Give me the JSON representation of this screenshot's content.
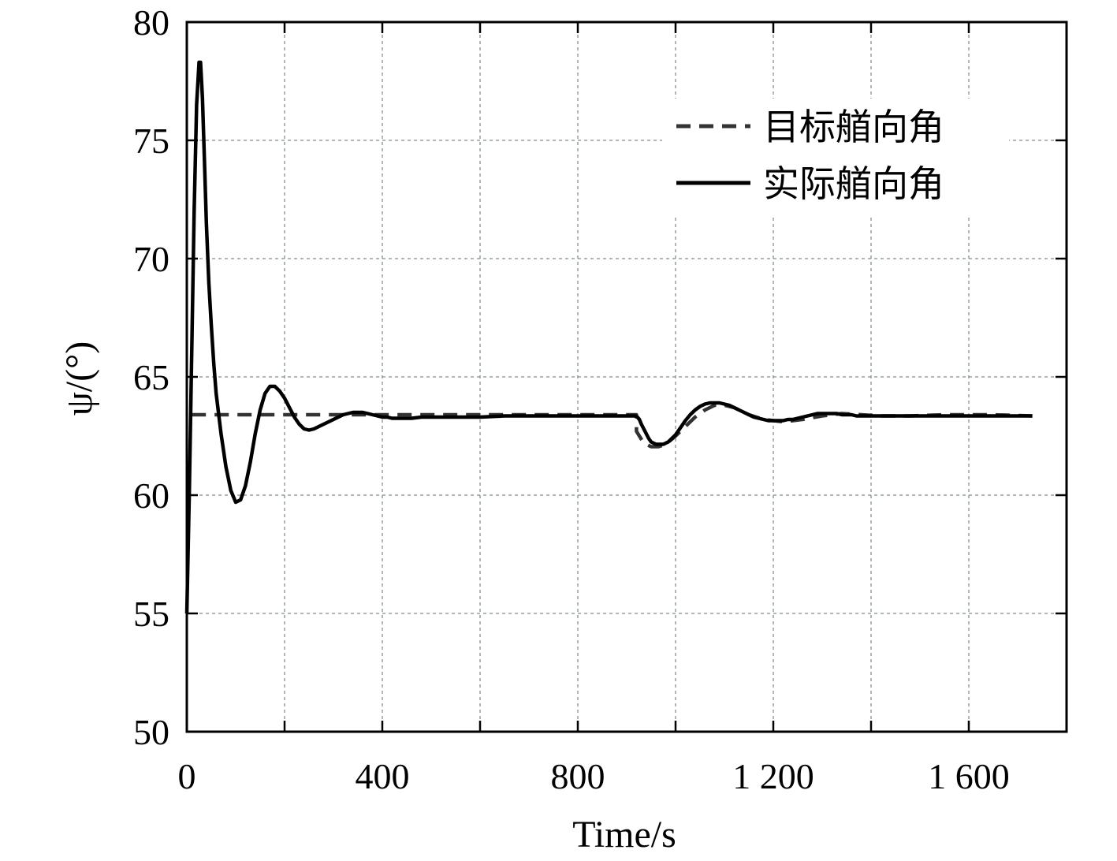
{
  "chart_data": {
    "type": "line",
    "xlabel": "Time/s",
    "ylabel": "ψ/(°)",
    "xlim": [
      0,
      1800
    ],
    "ylim": [
      50,
      80
    ],
    "xticks": [
      0,
      400,
      800,
      1200,
      1600
    ],
    "xtick_labels": [
      "0",
      "400",
      "800",
      "1 200",
      "1 600"
    ],
    "yticks": [
      50,
      55,
      60,
      65,
      70,
      75,
      80
    ],
    "ytick_labels": [
      "50",
      "55",
      "60",
      "65",
      "70",
      "75",
      "80"
    ],
    "grid": true,
    "legend_position": "top-right",
    "series": [
      {
        "name": "目标艏向角",
        "style": "dashed",
        "color": "#333333",
        "x": [
          10,
          920,
          920,
          935,
          950,
          965,
          980,
          1000,
          1020,
          1040,
          1060,
          1080,
          1100,
          1120,
          1150,
          1180,
          1220,
          1260,
          1300,
          1340,
          1380,
          1420,
          1480,
          1550,
          1650,
          1730
        ],
        "y": [
          63.4,
          63.4,
          62.7,
          62.2,
          62.05,
          62.05,
          62.15,
          62.5,
          62.9,
          63.3,
          63.6,
          63.8,
          63.8,
          63.7,
          63.4,
          63.2,
          63.1,
          63.2,
          63.35,
          63.45,
          63.4,
          63.35,
          63.35,
          63.4,
          63.4,
          63.35
        ]
      },
      {
        "name": "实际艏向角",
        "style": "solid",
        "color": "#000000",
        "x": [
          0,
          5,
          10,
          15,
          20,
          25,
          28,
          32,
          36,
          40,
          45,
          50,
          55,
          60,
          70,
          80,
          90,
          100,
          110,
          120,
          130,
          140,
          150,
          160,
          170,
          180,
          190,
          200,
          210,
          220,
          230,
          240,
          250,
          260,
          270,
          280,
          290,
          300,
          310,
          320,
          330,
          340,
          350,
          360,
          370,
          380,
          390,
          400,
          410,
          420,
          440,
          460,
          480,
          500,
          520,
          540,
          560,
          600,
          650,
          700,
          750,
          800,
          850,
          900,
          918,
          922,
          926,
          930,
          935,
          940,
          945,
          950,
          955,
          960,
          965,
          970,
          975,
          980,
          985,
          990,
          995,
          1000,
          1005,
          1010,
          1020,
          1030,
          1040,
          1050,
          1060,
          1070,
          1080,
          1090,
          1100,
          1110,
          1120,
          1130,
          1140,
          1150,
          1160,
          1170,
          1180,
          1190,
          1200,
          1210,
          1220,
          1230,
          1240,
          1250,
          1260,
          1270,
          1280,
          1290,
          1300,
          1310,
          1320,
          1330,
          1340,
          1350,
          1360,
          1370,
          1380,
          1390,
          1400,
          1420,
          1440,
          1460,
          1480,
          1500,
          1550,
          1600,
          1650,
          1700,
          1730
        ],
        "y": [
          55.0,
          60.0,
          66.0,
          72.0,
          76.5,
          78.3,
          78.3,
          76.8,
          74.2,
          71.5,
          69.0,
          67.2,
          65.6,
          64.3,
          62.6,
          61.2,
          60.2,
          59.7,
          59.8,
          60.4,
          61.4,
          62.6,
          63.6,
          64.3,
          64.6,
          64.6,
          64.4,
          64.1,
          63.7,
          63.3,
          63.0,
          62.8,
          62.75,
          62.8,
          62.9,
          63.0,
          63.1,
          63.2,
          63.3,
          63.4,
          63.45,
          63.5,
          63.5,
          63.5,
          63.45,
          63.4,
          63.35,
          63.3,
          63.3,
          63.25,
          63.25,
          63.25,
          63.3,
          63.3,
          63.3,
          63.3,
          63.3,
          63.3,
          63.35,
          63.35,
          63.35,
          63.35,
          63.35,
          63.35,
          63.35,
          63.3,
          63.2,
          63.0,
          62.8,
          62.6,
          62.4,
          62.25,
          62.2,
          62.15,
          62.15,
          62.15,
          62.15,
          62.2,
          62.25,
          62.35,
          62.45,
          62.55,
          62.7,
          62.85,
          63.15,
          63.4,
          63.6,
          63.75,
          63.85,
          63.9,
          63.9,
          63.9,
          63.85,
          63.8,
          63.7,
          63.6,
          63.5,
          63.4,
          63.3,
          63.25,
          63.2,
          63.15,
          63.15,
          63.15,
          63.15,
          63.2,
          63.2,
          63.25,
          63.3,
          63.35,
          63.4,
          63.45,
          63.45,
          63.45,
          63.45,
          63.45,
          63.4,
          63.4,
          63.4,
          63.35,
          63.35,
          63.35,
          63.35,
          63.35,
          63.35,
          63.35,
          63.35,
          63.35,
          63.35,
          63.35,
          63.35,
          63.35,
          63.35
        ]
      }
    ]
  }
}
